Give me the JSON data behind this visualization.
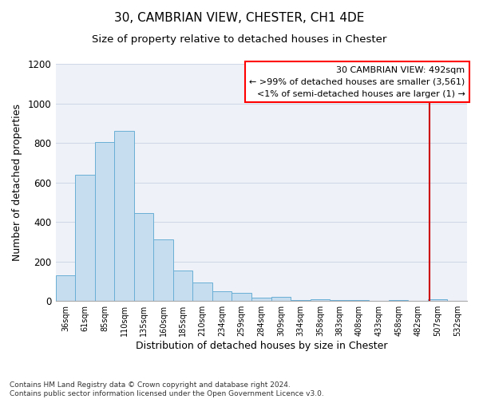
{
  "title": "30, CAMBRIAN VIEW, CHESTER, CH1 4DE",
  "subtitle": "Size of property relative to detached houses in Chester",
  "xlabel": "Distribution of detached houses by size in Chester",
  "ylabel": "Number of detached properties",
  "bar_labels": [
    "36sqm",
    "61sqm",
    "85sqm",
    "110sqm",
    "135sqm",
    "160sqm",
    "185sqm",
    "210sqm",
    "234sqm",
    "259sqm",
    "284sqm",
    "309sqm",
    "334sqm",
    "358sqm",
    "383sqm",
    "408sqm",
    "433sqm",
    "458sqm",
    "482sqm",
    "507sqm",
    "532sqm"
  ],
  "bar_values": [
    130,
    640,
    805,
    860,
    445,
    310,
    155,
    95,
    50,
    40,
    15,
    20,
    5,
    10,
    5,
    5,
    0,
    5,
    0,
    8,
    0
  ],
  "bar_color": "#c6dcef",
  "bar_edge_color": "#6aafd6",
  "grid_color": "#d0d8e8",
  "fig_background": "#ffffff",
  "axes_background": "#eef2f8",
  "vline_color": "#cc0000",
  "annotation_line1": "30 CAMBRIAN VIEW: 492sqm",
  "annotation_line2": "← >99% of detached houses are smaller (3,561)",
  "annotation_line3": "<1% of semi-detached houses are larger (1) →",
  "footnote1": "Contains HM Land Registry data © Crown copyright and database right 2024.",
  "footnote2": "Contains public sector information licensed under the Open Government Licence v3.0.",
  "ylim": [
    0,
    1200
  ],
  "yticks": [
    0,
    200,
    400,
    600,
    800,
    1000,
    1200
  ],
  "title_fontsize": 11,
  "subtitle_fontsize": 9.5,
  "ylabel_fontsize": 9,
  "xlabel_fontsize": 9,
  "footnote_fontsize": 6.5,
  "annotation_fontsize": 8
}
